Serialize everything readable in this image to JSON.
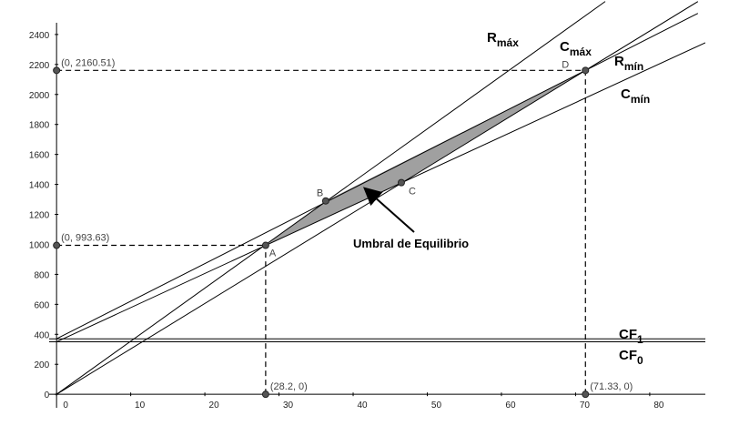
{
  "chart_data": {
    "type": "line",
    "annotation": "Umbral de Equilibrio",
    "xlim": [
      -1,
      87.5
    ],
    "ylim": [
      -90,
      2630
    ],
    "xticks": [
      0,
      10,
      20,
      30,
      40,
      50,
      60,
      70,
      80
    ],
    "yticks": [
      0,
      200,
      400,
      600,
      800,
      1000,
      1200,
      1400,
      1600,
      1800,
      2000,
      2200,
      2400
    ],
    "grid": false,
    "series": [
      {
        "label": {
          "main": "R",
          "sub": "máx"
        },
        "color": "#000000",
        "x": [
          0,
          74
        ],
        "values": [
          0,
          2620
        ]
      },
      {
        "label": {
          "main": "C",
          "sub": "máx"
        },
        "color": "#000000",
        "x": [
          0,
          86.5
        ],
        "values": [
          370,
          2541
        ]
      },
      {
        "label": {
          "main": "R",
          "sub": "mín"
        },
        "color": "#000000",
        "x": [
          0,
          86.5
        ],
        "values": [
          0,
          2620
        ]
      },
      {
        "label": {
          "main": "C",
          "sub": "mín"
        },
        "color": "#000000",
        "x": [
          0,
          87.5
        ],
        "values": [
          350,
          2345
        ]
      },
      {
        "label": {
          "main": "CF",
          "sub": "1"
        },
        "color": "#000000",
        "x": [
          -1,
          87.5
        ],
        "values": [
          370,
          370
        ]
      },
      {
        "label": {
          "main": "CF",
          "sub": "0"
        },
        "color": "#000000",
        "x": [
          -1,
          87.5
        ],
        "values": [
          350,
          350
        ]
      }
    ],
    "points": [
      {
        "label": "A",
        "x": 28.2,
        "y": 993.63
      },
      {
        "label": "B",
        "x": 36.3,
        "y": 1290
      },
      {
        "label": "C",
        "x": 46.5,
        "y": 1412
      },
      {
        "label": "D",
        "x": 71.33,
        "y": 2160.51
      }
    ],
    "region_color": "#a0a0a0",
    "axis_points": [
      {
        "label": "(0, 2160.51)",
        "x": 0,
        "y": 2160.51
      },
      {
        "label": "(0, 993.63)",
        "x": 0,
        "y": 993.63
      },
      {
        "label": "(28.2, 0)",
        "x": 28.2,
        "y": 0
      },
      {
        "label": "(71.33, 0)",
        "x": 71.33,
        "y": 0
      }
    ]
  }
}
